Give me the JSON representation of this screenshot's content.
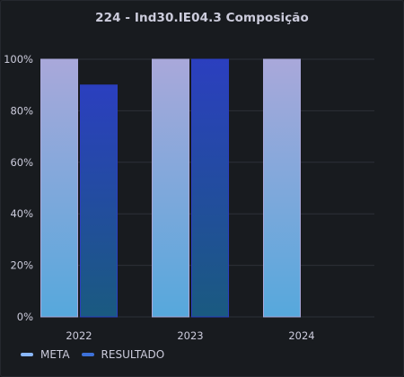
{
  "panel": {
    "title": "224 - Ind30.IE04.3 Composição"
  },
  "chart_data": {
    "type": "bar",
    "categories": [
      "2022",
      "2023",
      "2024"
    ],
    "series": [
      {
        "name": "META",
        "values": [
          100,
          100,
          100
        ],
        "color": "#a9a8da",
        "color_bottom": "#56a8dc",
        "legend_color": "#8ab8ff"
      },
      {
        "name": "RESULTADO",
        "values": [
          90,
          100,
          null
        ],
        "color": "#2b3fbf",
        "color_bottom": "#1a5a80",
        "legend_color": "#3d71d9"
      }
    ],
    "ylim": [
      0,
      100
    ],
    "yticks": [
      "0%",
      "20%",
      "40%",
      "60%",
      "80%",
      "100%"
    ],
    "ytick_values": [
      0,
      20,
      40,
      60,
      80,
      100
    ],
    "grid": true,
    "legend": "bottom-left"
  },
  "colors": {
    "background": "#181b1f",
    "grid": "#2c3038",
    "text": "#ccccdc"
  }
}
